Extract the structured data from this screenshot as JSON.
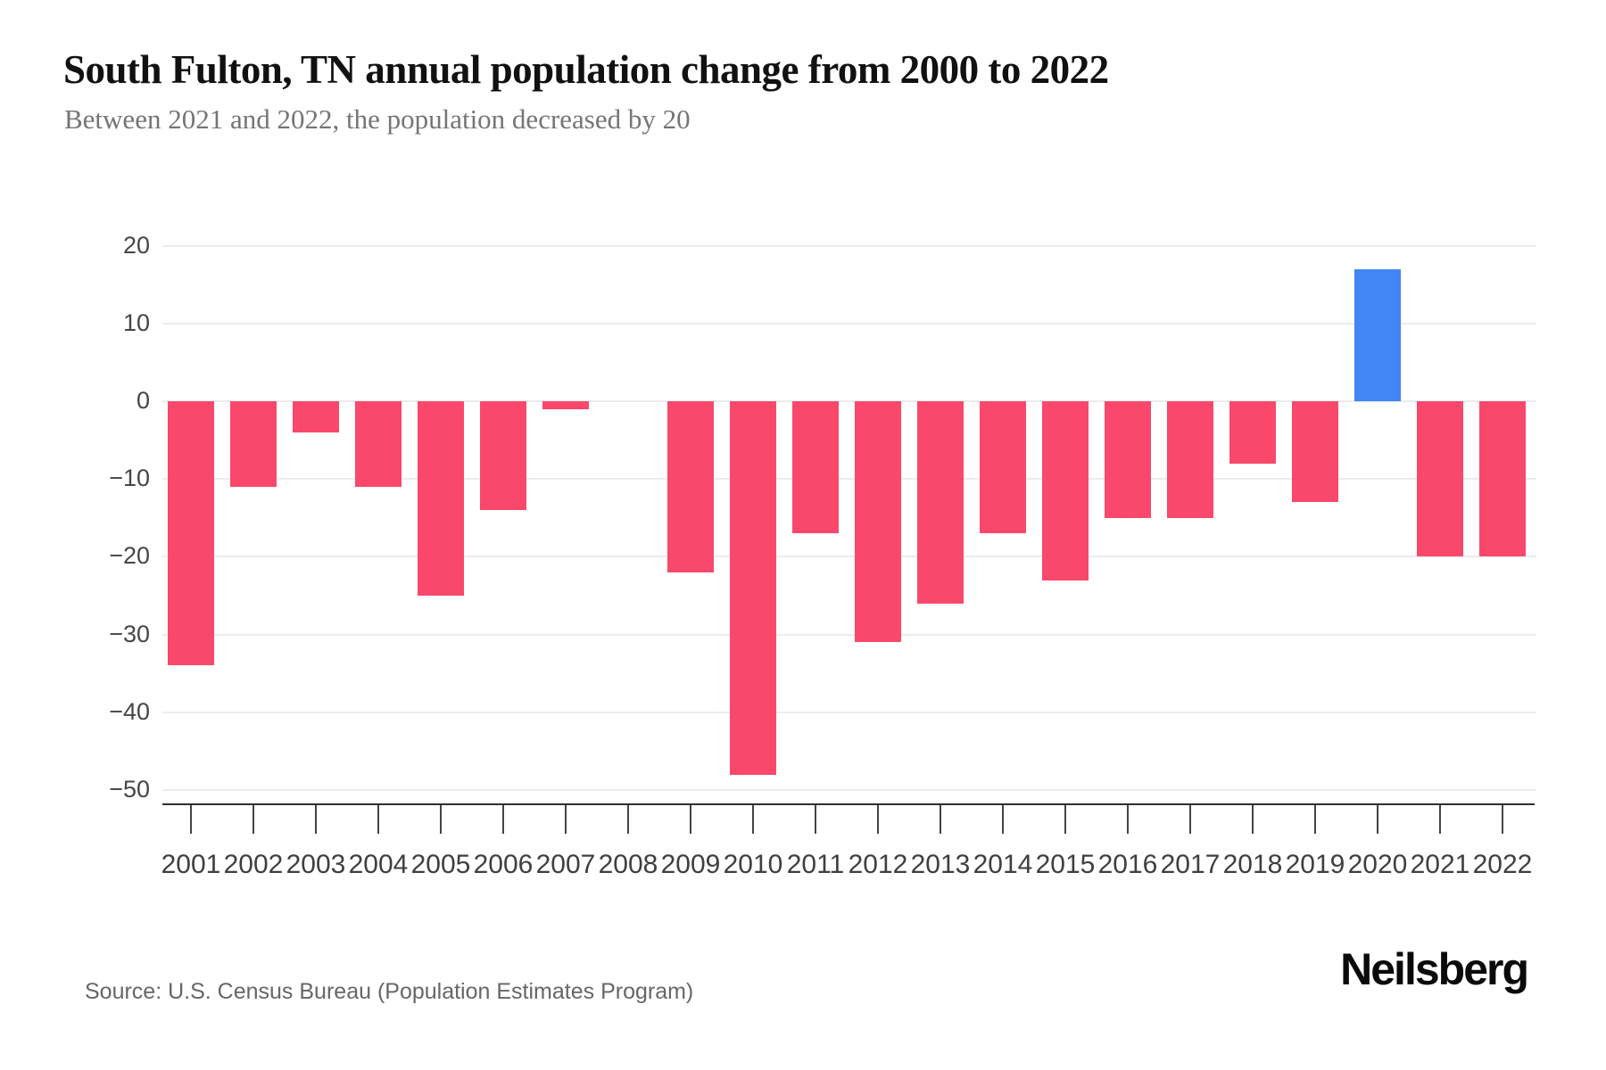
{
  "chart_data": {
    "type": "bar",
    "title": "South Fulton, TN annual population change from 2000 to 2022",
    "subtitle": "Between 2021 and 2022, the population decreased by 20",
    "categories": [
      "2001",
      "2002",
      "2003",
      "2004",
      "2005",
      "2006",
      "2007",
      "2008",
      "2009",
      "2010",
      "2011",
      "2012",
      "2013",
      "2014",
      "2015",
      "2016",
      "2017",
      "2018",
      "2019",
      "2020",
      "2021",
      "2022"
    ],
    "values": [
      -34,
      -11,
      -4,
      -11,
      -25,
      -14,
      -1,
      0,
      -22,
      -48,
      -17,
      -31,
      -26,
      -17,
      -23,
      -15,
      -15,
      -8,
      -13,
      17,
      -20,
      -20
    ],
    "yticks": [
      20,
      10,
      0,
      -10,
      -20,
      -30,
      -40,
      -50
    ],
    "ylim": [
      -50,
      20
    ],
    "grid": true,
    "legend": false,
    "bar_color": "#F9486B",
    "highlight_color": "#4285F4",
    "highlight_category": "2020"
  },
  "footer": {
    "source": "Source: U.S. Census Bureau (Population Estimates Program)",
    "brand": "Neilsberg"
  }
}
